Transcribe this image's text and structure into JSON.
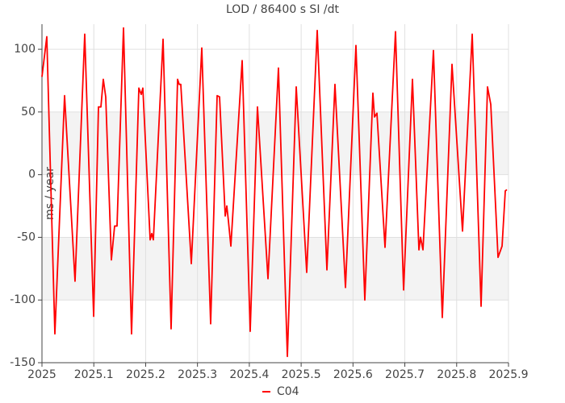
{
  "chart_data": {
    "type": "line",
    "title": "LOD / 86400 s SI /dt",
    "y_label": "ms / year",
    "x": [
      2025.0,
      2025.0093,
      2025.0249,
      2025.0436,
      2025.0638,
      2025.0825,
      2025.0997,
      2025.109,
      2025.1137,
      2025.1183,
      2025.123,
      2025.1339,
      2025.1401,
      2025.1448,
      2025.1573,
      2025.1728,
      2025.1869,
      2025.1915,
      2025.1946,
      2025.2087,
      2025.2118,
      2025.2149,
      2025.2336,
      2025.2491,
      2025.2616,
      2025.2647,
      2025.2678,
      2025.2881,
      2025.3083,
      2025.3254,
      2025.3379,
      2025.3426,
      2025.3535,
      2025.3566,
      2025.3597,
      2025.3644,
      2025.3862,
      2025.4017,
      2025.4157,
      2025.436,
      2025.4562,
      2025.4734,
      2025.4905,
      2025.5107,
      2025.531,
      2025.5497,
      2025.5652,
      2025.5855,
      2025.6057,
      2025.6228,
      2025.6384,
      2025.6415,
      2025.6462,
      2025.6618,
      2025.682,
      2025.6976,
      2025.7147,
      2025.7272,
      2025.7303,
      2025.735,
      2025.7552,
      2025.7723,
      2025.791,
      2025.8113,
      2025.83,
      2025.8471,
      2025.8595,
      2025.8658,
      2025.8798,
      2025.8876,
      2025.8938,
      2025.8969
    ],
    "series": [
      {
        "name": "C04",
        "color": "#ff0000",
        "values": [
          78,
          110,
          -127,
          63,
          -85,
          112,
          -113,
          54,
          54,
          76,
          62,
          -68,
          -41,
          -41,
          117,
          -127,
          69,
          64,
          69,
          -52,
          -47,
          -52,
          108,
          -123,
          76,
          72,
          72,
          -71,
          101,
          -119,
          63,
          62,
          -33,
          -25,
          -37,
          -57,
          91,
          -125,
          54,
          -83,
          85,
          -145,
          70,
          -78,
          115,
          -76,
          72,
          -90,
          103,
          -100,
          65,
          46,
          49,
          -58,
          114,
          -92,
          76,
          -60,
          -50,
          -60,
          99,
          -114,
          88,
          -45,
          112,
          -105,
          70,
          56,
          -66,
          -57,
          -13,
          -12
        ]
      }
    ],
    "xlim": [
      2025,
      2025.9
    ],
    "xticks": [
      2025,
      2025.1,
      2025.2,
      2025.3,
      2025.4,
      2025.5,
      2025.6,
      2025.7,
      2025.8,
      2025.9
    ],
    "ylim": [
      -150,
      120
    ],
    "yticks": [
      -150,
      -100,
      -50,
      0,
      50,
      100
    ],
    "grid": true,
    "legend": "bottom"
  }
}
